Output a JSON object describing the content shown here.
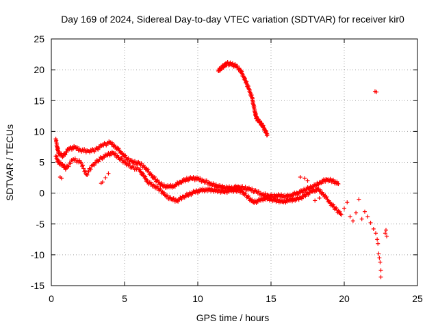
{
  "chart_data": {
    "type": "scatter",
    "title": "Day 169 of 2024, Sidereal Day-to-day VTEC variation (SDTVAR) for receiver kir0",
    "xlabel": "GPS time / hours",
    "ylabel": "SDTVAR / TECUs",
    "xlim": [
      0,
      25
    ],
    "ylim": [
      -15,
      25
    ],
    "xticks": [
      0,
      5,
      10,
      15,
      20,
      25
    ],
    "yticks": [
      -15,
      -10,
      -5,
      0,
      5,
      10,
      15,
      20,
      25
    ],
    "grid": true,
    "marker": "+",
    "color": "#ff0000",
    "series": [
      {
        "name": "main-trace-upper",
        "points": [
          [
            0.3,
            8.8
          ],
          [
            0.4,
            7.5
          ],
          [
            0.5,
            6.5
          ],
          [
            0.8,
            6.0
          ],
          [
            1.2,
            7.2
          ],
          [
            1.6,
            7.4
          ],
          [
            2.0,
            7.0
          ],
          [
            2.5,
            6.8
          ],
          [
            3.0,
            7.0
          ],
          [
            3.5,
            7.8
          ],
          [
            4.0,
            8.2
          ],
          [
            4.4,
            7.5
          ],
          [
            4.8,
            6.5
          ],
          [
            5.2,
            5.5
          ],
          [
            5.6,
            5.0
          ],
          [
            6.0,
            4.8
          ],
          [
            6.4,
            4.2
          ],
          [
            6.8,
            3.0
          ],
          [
            7.2,
            2.0
          ],
          [
            7.6,
            1.2
          ],
          [
            8.0,
            1.0
          ],
          [
            8.4,
            1.2
          ],
          [
            8.8,
            1.8
          ],
          [
            9.2,
            2.2
          ],
          [
            9.6,
            2.4
          ],
          [
            10.0,
            2.3
          ],
          [
            10.4,
            2.0
          ],
          [
            10.8,
            1.6
          ],
          [
            11.2,
            1.2
          ],
          [
            11.6,
            1.0
          ],
          [
            12.0,
            0.8
          ],
          [
            12.4,
            0.9
          ],
          [
            12.8,
            1.0
          ],
          [
            13.2,
            0.8
          ],
          [
            13.6,
            0.6
          ],
          [
            14.0,
            0.2
          ],
          [
            14.4,
            -0.2
          ],
          [
            14.8,
            -0.4
          ],
          [
            15.2,
            -0.5
          ],
          [
            15.6,
            -0.4
          ],
          [
            16.0,
            -0.6
          ],
          [
            16.4,
            -0.3
          ],
          [
            16.8,
            0.0
          ],
          [
            17.2,
            0.4
          ],
          [
            17.6,
            0.8
          ],
          [
            18.0,
            1.2
          ],
          [
            18.4,
            1.8
          ],
          [
            18.8,
            2.2
          ],
          [
            19.2,
            2.0
          ],
          [
            19.6,
            1.5
          ]
        ]
      },
      {
        "name": "main-trace-lower",
        "points": [
          [
            0.3,
            6.0
          ],
          [
            0.5,
            5.0
          ],
          [
            0.8,
            4.5
          ],
          [
            1.0,
            4.0
          ],
          [
            1.5,
            5.5
          ],
          [
            2.0,
            5.0
          ],
          [
            2.4,
            3.0
          ],
          [
            2.8,
            4.5
          ],
          [
            3.3,
            5.5
          ],
          [
            3.8,
            6.2
          ],
          [
            4.2,
            6.5
          ],
          [
            4.6,
            5.8
          ],
          [
            5.0,
            5.0
          ],
          [
            5.5,
            4.2
          ],
          [
            6.0,
            3.8
          ],
          [
            6.3,
            2.8
          ],
          [
            6.6,
            1.8
          ],
          [
            7.0,
            1.2
          ],
          [
            7.4,
            0.6
          ],
          [
            7.8,
            -0.4
          ],
          [
            8.2,
            -1.0
          ],
          [
            8.6,
            -1.2
          ],
          [
            9.0,
            -0.6
          ],
          [
            9.4,
            -0.2
          ],
          [
            9.8,
            0.2
          ],
          [
            10.2,
            0.4
          ],
          [
            10.6,
            0.6
          ],
          [
            11.0,
            0.5
          ],
          [
            11.4,
            0.4
          ],
          [
            11.8,
            0.2
          ],
          [
            12.2,
            0.4
          ],
          [
            12.6,
            0.5
          ],
          [
            13.0,
            0.3
          ],
          [
            13.4,
            -0.6
          ],
          [
            13.8,
            -1.5
          ],
          [
            14.2,
            -1.2
          ],
          [
            14.6,
            -0.8
          ],
          [
            15.0,
            -1.0
          ],
          [
            15.4,
            -1.2
          ],
          [
            15.8,
            -1.4
          ],
          [
            16.2,
            -1.2
          ],
          [
            16.6,
            -1.0
          ],
          [
            17.0,
            -0.8
          ],
          [
            17.4,
            -0.2
          ],
          [
            17.8,
            0.3
          ],
          [
            18.2,
            0.6
          ],
          [
            18.6,
            -0.2
          ],
          [
            19.0,
            -1.5
          ],
          [
            19.4,
            -2.5
          ],
          [
            19.8,
            -3.5
          ]
        ]
      },
      {
        "name": "arc-segment",
        "points": [
          [
            11.4,
            19.8
          ],
          [
            11.6,
            20.3
          ],
          [
            11.8,
            20.7
          ],
          [
            12.0,
            21.0
          ],
          [
            12.3,
            20.9
          ],
          [
            12.6,
            20.6
          ],
          [
            12.9,
            20.0
          ],
          [
            13.1,
            19.0
          ],
          [
            13.3,
            18.0
          ],
          [
            13.5,
            16.8
          ],
          [
            13.7,
            15.5
          ],
          [
            13.8,
            14.4
          ],
          [
            13.9,
            13.2
          ],
          [
            14.0,
            12.2
          ],
          [
            14.2,
            11.6
          ],
          [
            14.4,
            11.0
          ],
          [
            14.6,
            10.2
          ],
          [
            14.75,
            9.4
          ]
        ]
      },
      {
        "name": "scattered-points",
        "points": [
          [
            0.6,
            2.6
          ],
          [
            0.7,
            2.4
          ],
          [
            3.4,
            1.6
          ],
          [
            3.5,
            1.8
          ],
          [
            3.7,
            2.5
          ],
          [
            3.9,
            3.2
          ],
          [
            17.0,
            2.6
          ],
          [
            17.3,
            2.4
          ],
          [
            17.5,
            2.0
          ],
          [
            18.0,
            -1.2
          ],
          [
            18.3,
            -0.8
          ],
          [
            20.0,
            -2.5
          ],
          [
            20.2,
            -1.5
          ],
          [
            20.4,
            -3.8
          ],
          [
            20.6,
            -4.5
          ],
          [
            20.8,
            -3.2
          ],
          [
            21.0,
            -1.0
          ],
          [
            21.2,
            -4.2
          ],
          [
            21.4,
            -3.0
          ],
          [
            21.6,
            -3.8
          ],
          [
            21.8,
            -4.8
          ],
          [
            22.0,
            -5.8
          ],
          [
            22.1,
            16.5
          ],
          [
            22.2,
            16.4
          ],
          [
            22.15,
            -6.5
          ],
          [
            22.25,
            -7.5
          ],
          [
            22.3,
            -8.2
          ],
          [
            22.35,
            -9.8
          ],
          [
            22.4,
            -10.5
          ],
          [
            22.45,
            -11.2
          ],
          [
            22.5,
            -12.5
          ],
          [
            22.5,
            -13.6
          ],
          [
            22.8,
            -6.5
          ],
          [
            22.85,
            -6.0
          ],
          [
            22.9,
            -7.0
          ]
        ]
      }
    ]
  }
}
